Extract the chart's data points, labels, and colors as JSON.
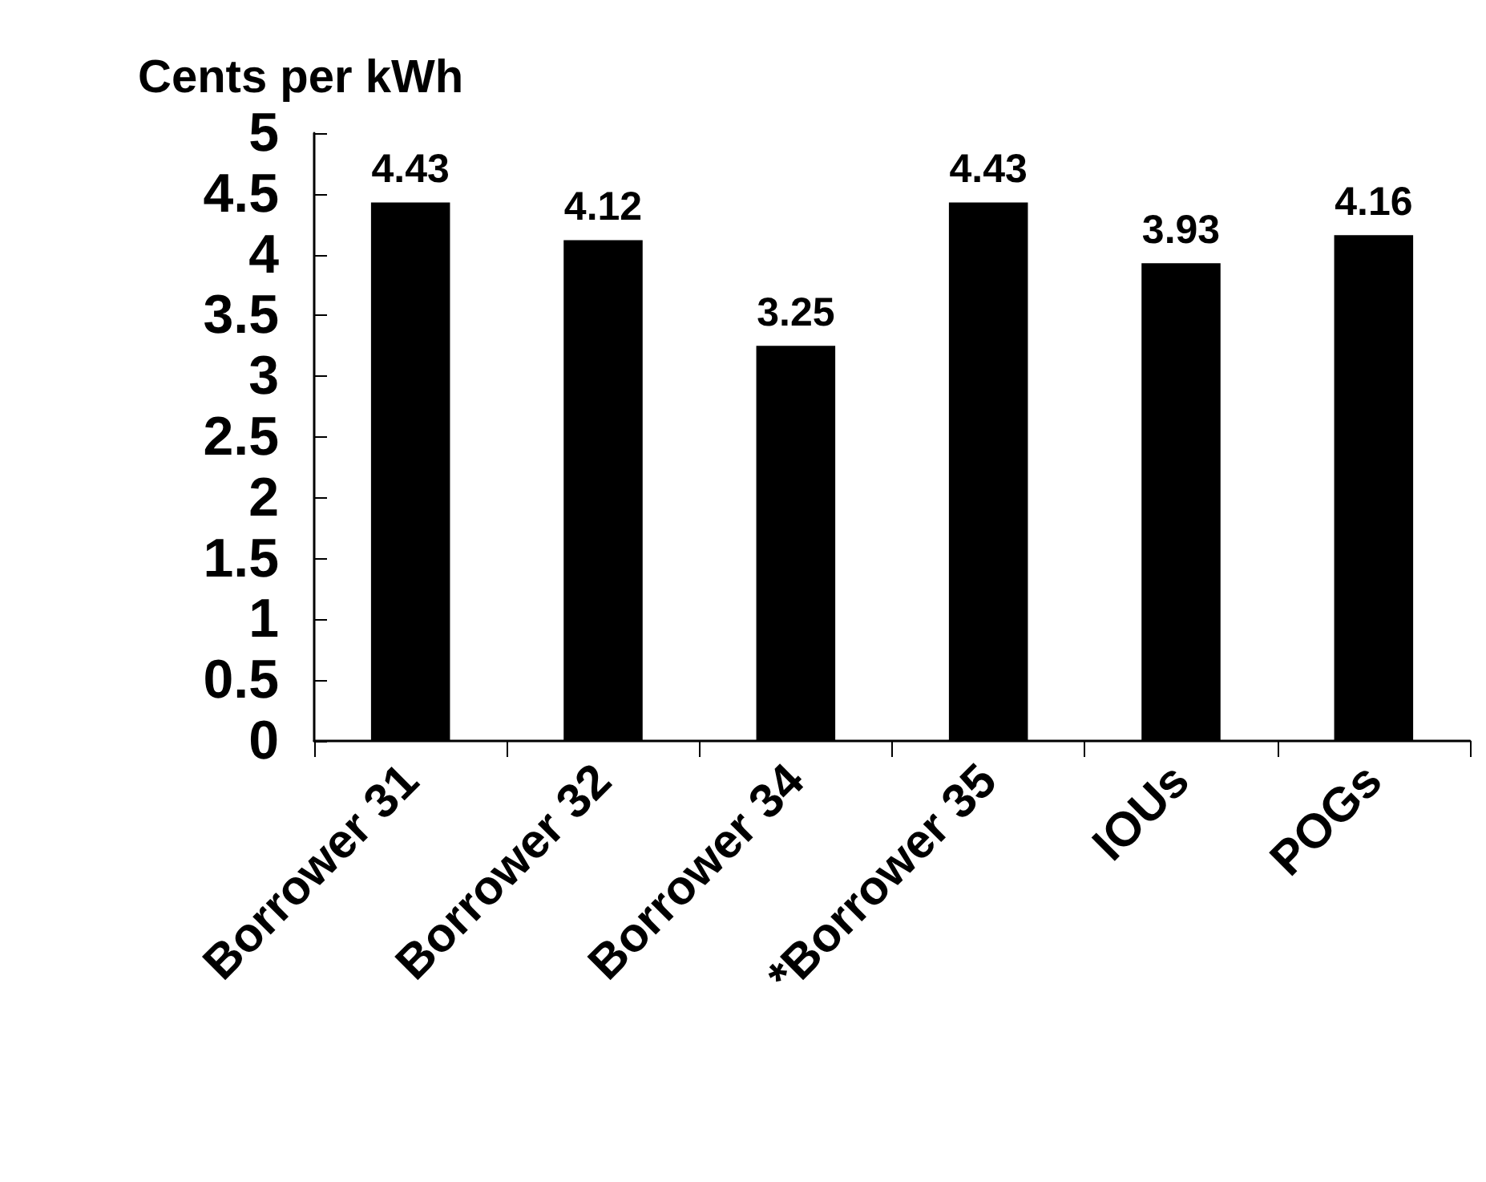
{
  "chart_data": {
    "type": "bar",
    "ylabel": "Cents per kWh",
    "categories": [
      "Borrower 31",
      "Borrower 32",
      "Borrower 34",
      "*Borrower 35",
      "IOUs",
      "POGs"
    ],
    "values": [
      4.43,
      4.12,
      3.25,
      4.43,
      3.93,
      4.16
    ],
    "color": "#000000",
    "ylim": [
      0,
      5
    ],
    "yticks": [
      0,
      0.5,
      1,
      1.5,
      2,
      2.5,
      3,
      3.5,
      4,
      4.5,
      5
    ],
    "grid": false,
    "data_labels": true
  }
}
